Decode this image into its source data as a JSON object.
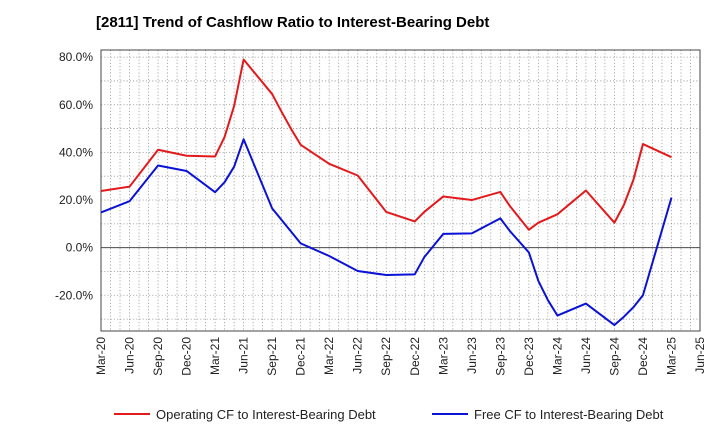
{
  "title": "[2811]  Trend of Cashflow Ratio to Interest-Bearing Debt",
  "chart_data": {
    "type": "line",
    "title": "[2811]  Trend of Cashflow Ratio to Interest-Bearing Debt",
    "x_ticks": [
      "Mar-20",
      "Jun-20",
      "Sep-20",
      "Dec-20",
      "Mar-21",
      "Jun-21",
      "Sep-21",
      "Dec-21",
      "Mar-22",
      "Jun-22",
      "Sep-22",
      "Dec-22",
      "Mar-23",
      "Jun-23",
      "Sep-23",
      "Dec-23",
      "Mar-24",
      "Jun-24",
      "Sep-24",
      "Dec-24",
      "Mar-25",
      "Jun-25"
    ],
    "y_ticks": [
      "80.0%",
      "60.0%",
      "40.0%",
      "20.0%",
      "0.0%",
      "-20.0%"
    ],
    "y_tick_values": [
      80,
      60,
      40,
      20,
      0,
      -20
    ],
    "ylim": [
      -35,
      83
    ],
    "y_unit": "%",
    "grid": true,
    "legend_position": "bottom",
    "series": [
      {
        "name": "Operating CF to Interest-Bearing Debt",
        "color": "#e31a1c",
        "points": [
          [
            "2020-03",
            23.8
          ],
          [
            "2020-06",
            25.6
          ],
          [
            "2020-09",
            41.1
          ],
          [
            "2020-12",
            38.6
          ],
          [
            "2021-03",
            38.3
          ],
          [
            "2021-04",
            46.5
          ],
          [
            "2021-05",
            59.5
          ],
          [
            "2021-06",
            79.0
          ],
          [
            "2021-09",
            64.5
          ],
          [
            "2021-10",
            57.0
          ],
          [
            "2021-11",
            49.8
          ],
          [
            "2021-12",
            43.2
          ],
          [
            "2022-03",
            35.2
          ],
          [
            "2022-06",
            30.3
          ],
          [
            "2022-09",
            15.0
          ],
          [
            "2022-12",
            11.0
          ],
          [
            "2023-01",
            15.0
          ],
          [
            "2023-03",
            21.5
          ],
          [
            "2023-06",
            20.0
          ],
          [
            "2023-09",
            23.4
          ],
          [
            "2023-10",
            17.5
          ],
          [
            "2023-12",
            7.5
          ],
          [
            "2024-01",
            10.5
          ],
          [
            "2024-03",
            14.0
          ],
          [
            "2024-06",
            24.0
          ],
          [
            "2024-09",
            10.5
          ],
          [
            "2024-10",
            18.0
          ],
          [
            "2024-11",
            28.5
          ],
          [
            "2024-12",
            43.5
          ],
          [
            "2025-03",
            38.0
          ]
        ]
      },
      {
        "name": "Free CF to Interest-Bearing Debt",
        "color": "#0a12d6",
        "points": [
          [
            "2020-03",
            14.8
          ],
          [
            "2020-06",
            19.5
          ],
          [
            "2020-09",
            34.5
          ],
          [
            "2020-12",
            32.2
          ],
          [
            "2021-03",
            23.3
          ],
          [
            "2021-04",
            27.5
          ],
          [
            "2021-05",
            34.0
          ],
          [
            "2021-06",
            45.5
          ],
          [
            "2021-09",
            16.5
          ],
          [
            "2021-12",
            1.8
          ],
          [
            "2022-03",
            -3.5
          ],
          [
            "2022-06",
            -9.8
          ],
          [
            "2022-09",
            -11.5
          ],
          [
            "2022-12",
            -11.2
          ],
          [
            "2023-01",
            -4.0
          ],
          [
            "2023-03",
            5.8
          ],
          [
            "2023-06",
            6.0
          ],
          [
            "2023-09",
            12.3
          ],
          [
            "2023-10",
            7.0
          ],
          [
            "2023-12",
            -2.0
          ],
          [
            "2024-01",
            -14.0
          ],
          [
            "2024-02",
            -22.0
          ],
          [
            "2024-03",
            -28.5
          ],
          [
            "2024-06",
            -23.5
          ],
          [
            "2024-09",
            -32.5
          ],
          [
            "2024-10",
            -29.0
          ],
          [
            "2024-11",
            -25.0
          ],
          [
            "2024-12",
            -20.0
          ],
          [
            "2025-03",
            21.0
          ]
        ]
      }
    ]
  }
}
